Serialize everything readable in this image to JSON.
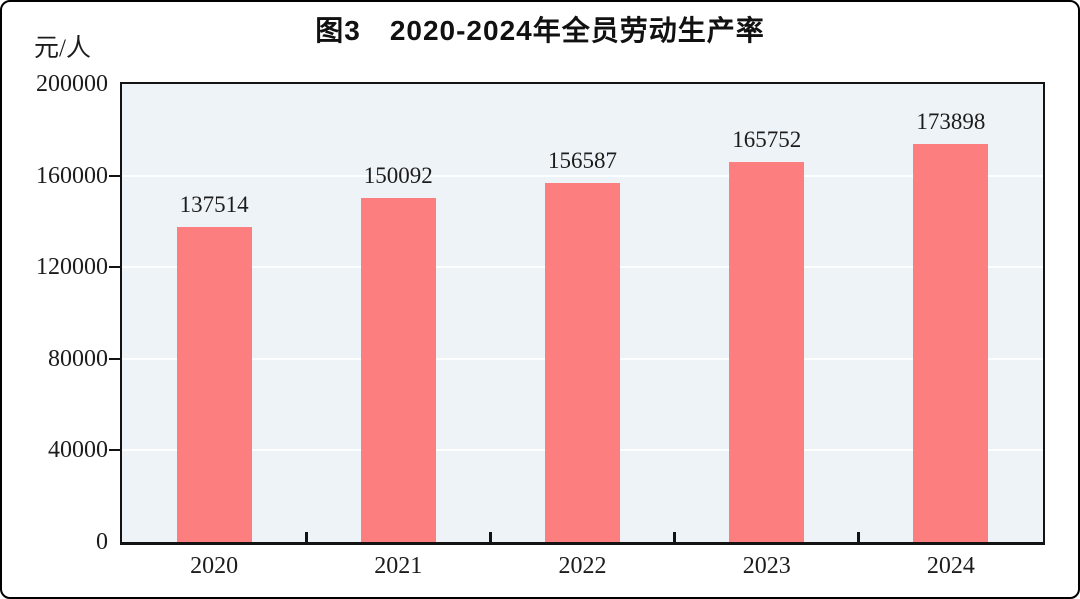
{
  "figure": {
    "title": "图3　2020-2024年全员劳动生产率",
    "unit_label": "元/人"
  },
  "chart_data": {
    "type": "bar",
    "title": "图3　2020-2024年全员劳动生产率",
    "ylabel": "元/人",
    "xlabel": "",
    "categories": [
      "2020",
      "2021",
      "2022",
      "2023",
      "2024"
    ],
    "values": [
      137514,
      150092,
      156587,
      165752,
      173898
    ],
    "value_labels": [
      "137514",
      "150092",
      "156587",
      "165752",
      "173898"
    ],
    "ylim": [
      0,
      200000
    ],
    "yticks": [
      0,
      40000,
      80000,
      120000,
      160000,
      200000
    ],
    "ytick_labels": [
      "0",
      "40000",
      "80000",
      "120000",
      "160000",
      "200000"
    ],
    "grid": true,
    "legend_position": "none",
    "colors": {
      "bar": "#fd7e7e",
      "plot_background": "#edf3f7",
      "gridline": "#fdfeff",
      "axis": "#131313",
      "text": "#1c1c1c"
    }
  }
}
